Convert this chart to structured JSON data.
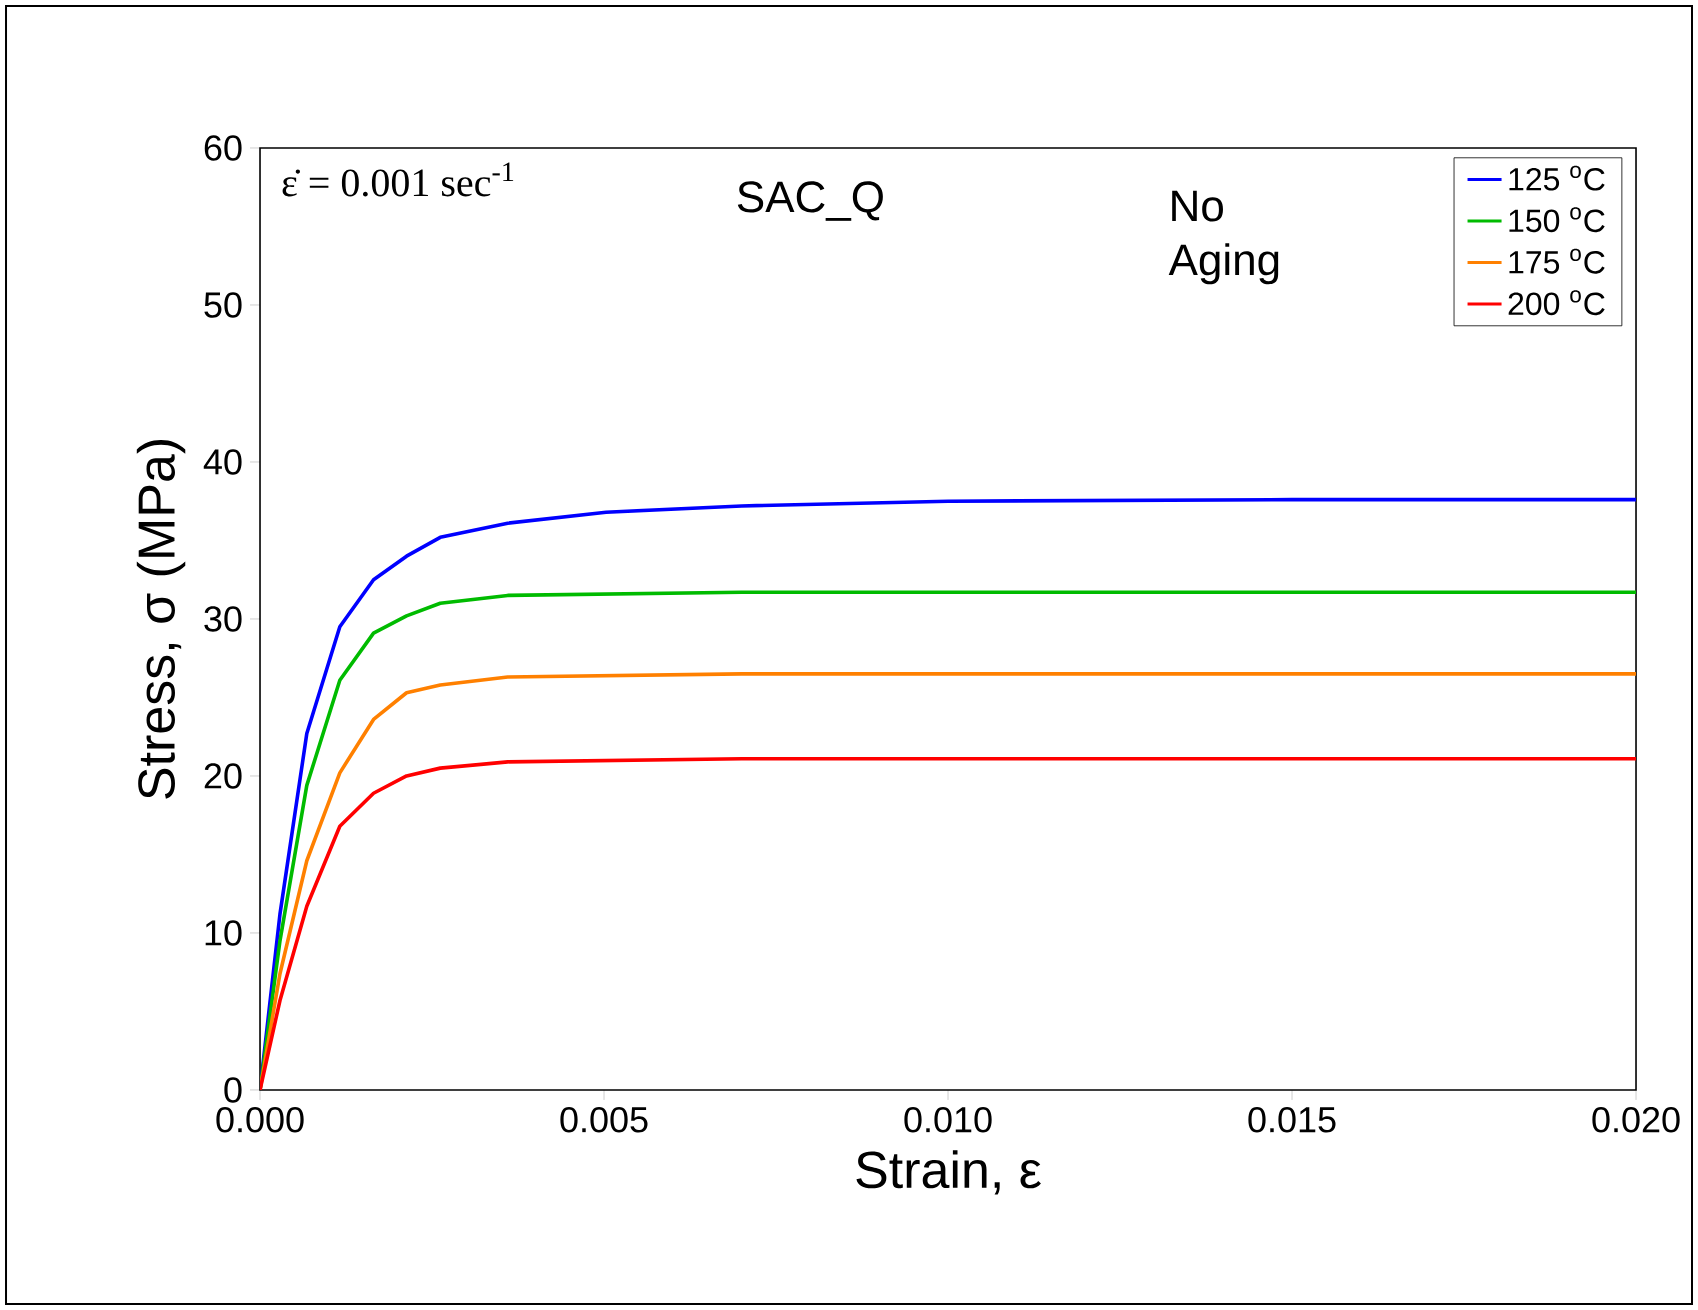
{
  "chart_data": {
    "type": "line",
    "xlabel": "Strain, ε",
    "ylabel": "Stress, σ (MPa)",
    "xlim": [
      0,
      0.02
    ],
    "ylim": [
      0,
      60
    ],
    "xticks": [
      {
        "value": 0,
        "label": "0.000"
      },
      {
        "value": 0.005,
        "label": "0.005"
      },
      {
        "value": 0.01,
        "label": "0.010"
      },
      {
        "value": 0.015,
        "label": "0.015"
      },
      {
        "value": 0.02,
        "label": "0.020"
      }
    ],
    "yticks": [
      0,
      10,
      20,
      30,
      40,
      50,
      60
    ],
    "legend": "top right",
    "marker": "none",
    "line_style": "solid",
    "grid": false,
    "annotations": [
      "ε̇ = 0.001 sec$^{-1}$",
      "SAC_Q",
      "No Aging"
    ],
    "series": [
      {
        "name": "125 $^{o}$C",
        "color": "#0000ff",
        "x": [
          0,
          0.00029,
          0.00068,
          0.00116,
          0.00165,
          0.00213,
          0.00262,
          0.0036,
          0.00503,
          0.007,
          0.01,
          0.015,
          0.02
        ],
        "values": [
          0,
          11.2,
          22.7,
          29.5,
          32.5,
          34.0,
          35.2,
          36.1,
          36.8,
          37.2,
          37.5,
          37.6,
          37.6
        ]
      },
      {
        "name": "150 $^{o}$C",
        "color": "#00bb00",
        "x": [
          0,
          0.00029,
          0.00068,
          0.00116,
          0.00165,
          0.00213,
          0.00262,
          0.0036,
          0.007,
          0.01,
          0.02
        ],
        "values": [
          0,
          9.5,
          19.4,
          26.1,
          29.1,
          30.2,
          31.0,
          31.5,
          31.7,
          31.7,
          31.7
        ]
      },
      {
        "name": "175 $^{o}$C",
        "color": "#ff8000",
        "x": [
          0,
          0.00029,
          0.00068,
          0.00116,
          0.00165,
          0.00213,
          0.00262,
          0.0036,
          0.007,
          0.01,
          0.02
        ],
        "values": [
          0,
          7.4,
          14.6,
          20.2,
          23.6,
          25.3,
          25.8,
          26.3,
          26.5,
          26.5,
          26.5
        ]
      },
      {
        "name": "200 $^{o}$C",
        "color": "#ff0000",
        "x": [
          0,
          0.00029,
          0.00068,
          0.00116,
          0.00165,
          0.00213,
          0.00262,
          0.0036,
          0.007,
          0.01,
          0.02
        ],
        "values": [
          0,
          5.7,
          11.7,
          16.8,
          18.9,
          20.0,
          20.5,
          20.9,
          21.1,
          21.1,
          21.1
        ]
      }
    ]
  }
}
